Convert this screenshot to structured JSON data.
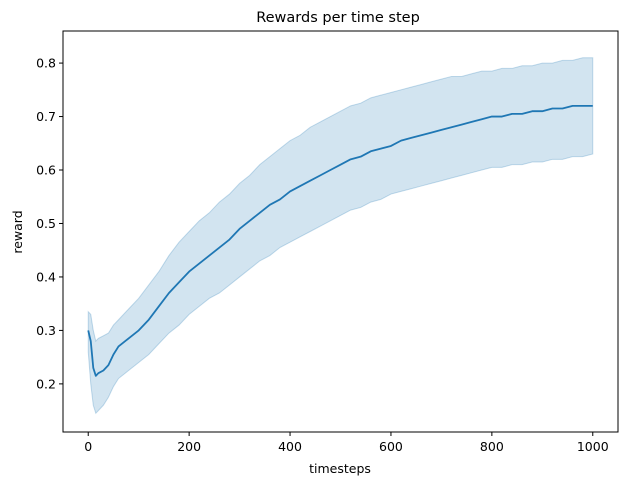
{
  "chart_data": {
    "type": "line",
    "title": "Rewards per time step",
    "xlabel": "timesteps",
    "ylabel": "reward",
    "xlim": [
      -50,
      1050
    ],
    "ylim": [
      0.11,
      0.86
    ],
    "grid": false,
    "legend": "none",
    "x_ticks": [
      0,
      200,
      400,
      600,
      800,
      1000
    ],
    "y_ticks": [
      0.2,
      0.3,
      0.4,
      0.5,
      0.6,
      0.7,
      0.8
    ],
    "x_tick_labels": [
      "0",
      "200",
      "400",
      "600",
      "800",
      "1000"
    ],
    "y_tick_labels": [
      "0.2",
      "0.3",
      "0.4",
      "0.5",
      "0.6",
      "0.7",
      "0.8"
    ],
    "colors": {
      "line": "#1f77b4",
      "band": "#1f77b4"
    },
    "series": [
      {
        "x": [
          0,
          5,
          10,
          15,
          20,
          30,
          40,
          50,
          60,
          80,
          100,
          120,
          140,
          160,
          180,
          200,
          220,
          240,
          260,
          280,
          300,
          320,
          340,
          360,
          380,
          400,
          420,
          440,
          460,
          480,
          500,
          520,
          540,
          560,
          580,
          600,
          620,
          640,
          660,
          680,
          700,
          720,
          740,
          760,
          780,
          800,
          820,
          840,
          860,
          880,
          900,
          920,
          940,
          960,
          980,
          1000
        ],
        "y": [
          0.3,
          0.28,
          0.23,
          0.215,
          0.22,
          0.225,
          0.235,
          0.255,
          0.27,
          0.285,
          0.3,
          0.32,
          0.345,
          0.37,
          0.39,
          0.41,
          0.425,
          0.44,
          0.455,
          0.47,
          0.49,
          0.505,
          0.52,
          0.535,
          0.545,
          0.56,
          0.57,
          0.58,
          0.59,
          0.6,
          0.61,
          0.62,
          0.625,
          0.635,
          0.64,
          0.645,
          0.655,
          0.66,
          0.665,
          0.67,
          0.675,
          0.68,
          0.685,
          0.69,
          0.695,
          0.7,
          0.7,
          0.705,
          0.705,
          0.71,
          0.71,
          0.715,
          0.715,
          0.72,
          0.72,
          0.72
        ],
        "lower": [
          0.26,
          0.2,
          0.16,
          0.145,
          0.15,
          0.16,
          0.175,
          0.195,
          0.21,
          0.225,
          0.24,
          0.255,
          0.275,
          0.295,
          0.31,
          0.33,
          0.345,
          0.36,
          0.37,
          0.385,
          0.4,
          0.415,
          0.43,
          0.44,
          0.455,
          0.465,
          0.475,
          0.485,
          0.495,
          0.505,
          0.515,
          0.525,
          0.53,
          0.54,
          0.545,
          0.555,
          0.56,
          0.565,
          0.57,
          0.575,
          0.58,
          0.585,
          0.59,
          0.595,
          0.6,
          0.605,
          0.605,
          0.61,
          0.61,
          0.615,
          0.615,
          0.62,
          0.62,
          0.625,
          0.625,
          0.63
        ],
        "upper": [
          0.335,
          0.33,
          0.3,
          0.28,
          0.285,
          0.29,
          0.295,
          0.31,
          0.32,
          0.34,
          0.36,
          0.385,
          0.41,
          0.44,
          0.465,
          0.485,
          0.505,
          0.52,
          0.54,
          0.555,
          0.575,
          0.59,
          0.61,
          0.625,
          0.64,
          0.655,
          0.665,
          0.68,
          0.69,
          0.7,
          0.71,
          0.72,
          0.725,
          0.735,
          0.74,
          0.745,
          0.75,
          0.755,
          0.76,
          0.765,
          0.77,
          0.775,
          0.775,
          0.78,
          0.785,
          0.785,
          0.79,
          0.79,
          0.795,
          0.795,
          0.8,
          0.8,
          0.805,
          0.805,
          0.81,
          0.81
        ]
      }
    ]
  }
}
